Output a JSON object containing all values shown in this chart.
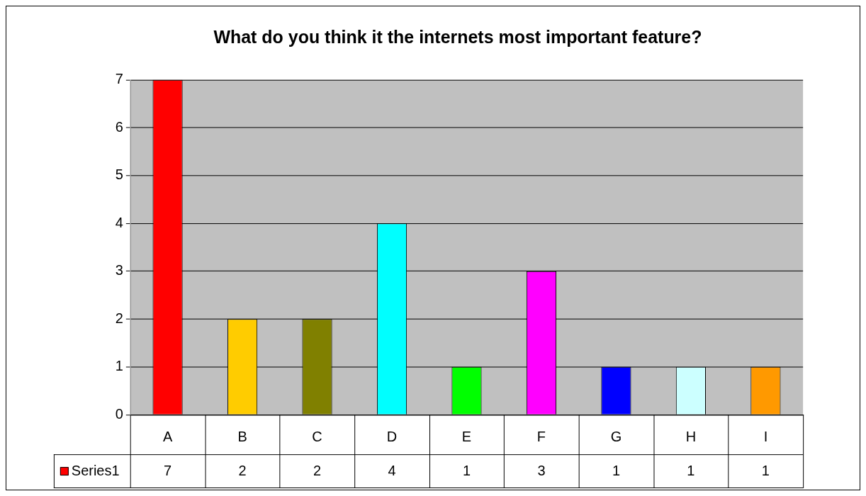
{
  "chart_data": {
    "type": "bar",
    "title": "What do you think it the internets most important feature?",
    "categories": [
      "A",
      "B",
      "C",
      "D",
      "E",
      "F",
      "G",
      "H",
      "I"
    ],
    "series": [
      {
        "name": "Series1",
        "color": "#ff0000",
        "colors": [
          "#ff0000",
          "#ffcc00",
          "#808000",
          "#00ffff",
          "#00ff00",
          "#ff00ff",
          "#0000ff",
          "#ccffff",
          "#ff9900"
        ],
        "values": [
          7,
          2,
          2,
          4,
          1,
          3,
          1,
          1,
          1
        ]
      }
    ],
    "ylim": [
      0,
      7
    ],
    "yticks": [
      0,
      1,
      2,
      3,
      4,
      5,
      6,
      7
    ],
    "grid": "y",
    "legend": "bottom left",
    "data_labels": true
  }
}
